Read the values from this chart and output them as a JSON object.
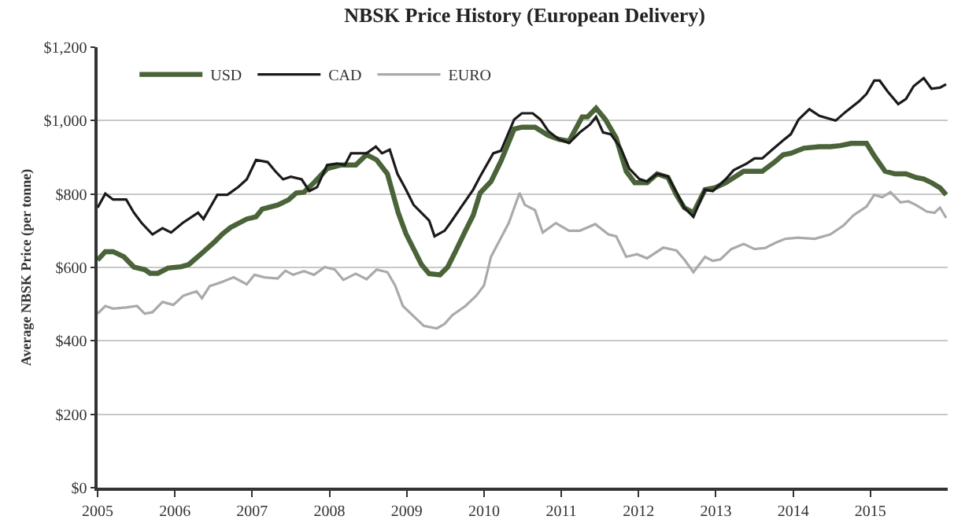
{
  "chart_data": {
    "type": "line",
    "title": "NBSK Price History (European Delivery)",
    "ylabel": "Average NBSK Price (per tonne)",
    "xlim": [
      2005,
      2016
    ],
    "xticks": [
      2005,
      2006,
      2007,
      2008,
      2009,
      2010,
      2011,
      2012,
      2013,
      2014,
      2015
    ],
    "ylim": [
      0,
      1200
    ],
    "yticks": [
      {
        "value": 0,
        "label": "$0"
      },
      {
        "value": 200,
        "label": "$200"
      },
      {
        "value": 400,
        "label": "$400"
      },
      {
        "value": 600,
        "label": "$600"
      },
      {
        "value": 800,
        "label": "$800"
      },
      {
        "value": 1000,
        "label": "$1,000"
      },
      {
        "value": 1200,
        "label": "$1,200"
      }
    ],
    "grid": "y",
    "legend": "top left",
    "marker": "none",
    "line_style": "solid",
    "series": [
      {
        "name": "USD",
        "color": "#4a6339",
        "x": [
          2005.0,
          2005.1,
          2005.2,
          2005.34,
          2005.47,
          2005.61,
          2005.68,
          2005.78,
          2005.91,
          2006.08,
          2006.18,
          2006.35,
          2006.52,
          2006.62,
          2006.72,
          2006.93,
          2007.05,
          2007.13,
          2007.33,
          2007.47,
          2007.57,
          2007.67,
          2007.8,
          2007.97,
          2008.14,
          2008.34,
          2008.48,
          2008.61,
          2008.75,
          2008.89,
          2008.99,
          2009.09,
          2009.19,
          2009.29,
          2009.43,
          2009.53,
          2009.63,
          2009.76,
          2009.86,
          2009.95,
          2010.09,
          2010.22,
          2010.39,
          2010.49,
          2010.66,
          2010.83,
          2010.97,
          2011.1,
          2011.27,
          2011.34,
          2011.45,
          2011.57,
          2011.71,
          2011.84,
          2011.95,
          2012.11,
          2012.24,
          2012.38,
          2012.49,
          2012.59,
          2012.71,
          2012.86,
          2012.99,
          2013.13,
          2013.36,
          2013.6,
          2013.76,
          2013.87,
          2013.97,
          2014.14,
          2014.34,
          2014.48,
          2014.61,
          2014.75,
          2014.95,
          2015.05,
          2015.19,
          2015.32,
          2015.46,
          2015.59,
          2015.69,
          2015.79,
          2015.9,
          2015.98
        ],
        "values": [
          620,
          643,
          643,
          629,
          601,
          594,
          584,
          584,
          598,
          602,
          608,
          639,
          671,
          692,
          709,
          732,
          738,
          759,
          770,
          784,
          803,
          805,
          831,
          869,
          879,
          879,
          907,
          893,
          855,
          749,
          692,
          650,
          608,
          583,
          580,
          601,
          643,
          700,
          742,
          803,
          834,
          890,
          977,
          982,
          982,
          960,
          949,
          944,
          1010,
          1010,
          1034,
          1003,
          953,
          862,
          831,
          831,
          855,
          845,
          798,
          763,
          749,
          812,
          817,
          831,
          862,
          862,
          887,
          907,
          911,
          925,
          929,
          929,
          932,
          938,
          938,
          904,
          862,
          855,
          855,
          845,
          841,
          831,
          817,
          798
        ]
      },
      {
        "name": "CAD",
        "color": "#1a1a1a",
        "x": [
          2005.0,
          2005.1,
          2005.2,
          2005.37,
          2005.47,
          2005.57,
          2005.71,
          2005.84,
          2005.95,
          2006.1,
          2006.3,
          2006.37,
          2006.55,
          2006.68,
          2006.82,
          2006.93,
          2007.05,
          2007.2,
          2007.3,
          2007.4,
          2007.5,
          2007.64,
          2007.74,
          2007.84,
          2007.97,
          2008.1,
          2008.2,
          2008.28,
          2008.48,
          2008.6,
          2008.68,
          2008.78,
          2008.88,
          2008.99,
          2009.09,
          2009.29,
          2009.36,
          2009.49,
          2009.56,
          2009.7,
          2009.86,
          2009.95,
          2010.12,
          2010.22,
          2010.39,
          2010.49,
          2010.63,
          2010.73,
          2010.83,
          2010.97,
          2011.1,
          2011.24,
          2011.37,
          2011.45,
          2011.54,
          2011.64,
          2011.77,
          2011.88,
          2012.01,
          2012.11,
          2012.24,
          2012.38,
          2012.49,
          2012.59,
          2012.71,
          2012.86,
          2012.96,
          2013.13,
          2013.23,
          2013.4,
          2013.5,
          2013.6,
          2013.73,
          2013.87,
          2013.97,
          2014.07,
          2014.21,
          2014.34,
          2014.55,
          2014.68,
          2014.85,
          2014.95,
          2015.05,
          2015.12,
          2015.22,
          2015.36,
          2015.46,
          2015.56,
          2015.69,
          2015.79,
          2015.9,
          2015.98
        ],
        "values": [
          763,
          801,
          785,
          785,
          749,
          721,
          690,
          707,
          695,
          721,
          749,
          732,
          798,
          798,
          819,
          840,
          893,
          887,
          862,
          840,
          847,
          840,
          808,
          819,
          879,
          883,
          879,
          911,
          911,
          929,
          911,
          921,
          855,
          812,
          770,
          728,
          685,
          700,
          720,
          763,
          812,
          848,
          911,
          918,
          1003,
          1020,
          1020,
          1003,
          972,
          949,
          939,
          968,
          989,
          1010,
          968,
          963,
          925,
          869,
          841,
          834,
          855,
          848,
          805,
          763,
          738,
          812,
          808,
          841,
          865,
          883,
          897,
          897,
          921,
          946,
          963,
          1003,
          1031,
          1013,
          1000,
          1024,
          1052,
          1073,
          1109,
          1109,
          1080,
          1045,
          1059,
          1094,
          1116,
          1087,
          1090,
          1099
        ]
      },
      {
        "name": "EURO",
        "color": "#aaaaaa",
        "x": [
          2005.0,
          2005.1,
          2005.2,
          2005.37,
          2005.51,
          2005.61,
          2005.71,
          2005.84,
          2005.98,
          2006.11,
          2006.28,
          2006.35,
          2006.45,
          2006.59,
          2006.76,
          2006.93,
          2007.03,
          2007.16,
          2007.33,
          2007.43,
          2007.53,
          2007.67,
          2007.8,
          2007.94,
          2008.07,
          2008.18,
          2008.34,
          2008.48,
          2008.61,
          2008.75,
          2008.85,
          2008.95,
          2009.09,
          2009.22,
          2009.39,
          2009.49,
          2009.59,
          2009.76,
          2009.9,
          2010.0,
          2010.09,
          2010.22,
          2010.32,
          2010.46,
          2010.53,
          2010.66,
          2010.76,
          2010.93,
          2011.1,
          2011.24,
          2011.44,
          2011.61,
          2011.71,
          2011.84,
          2011.98,
          2012.11,
          2012.32,
          2012.49,
          2012.59,
          2012.71,
          2012.86,
          2012.96,
          2013.06,
          2013.2,
          2013.36,
          2013.5,
          2013.64,
          2013.77,
          2013.9,
          2014.07,
          2014.28,
          2014.48,
          2014.65,
          2014.78,
          2014.95,
          2015.05,
          2015.15,
          2015.26,
          2015.39,
          2015.49,
          2015.59,
          2015.73,
          2015.83,
          2015.9,
          2015.98
        ],
        "values": [
          474,
          495,
          488,
          491,
          495,
          474,
          478,
          506,
          498,
          523,
          535,
          516,
          549,
          559,
          573,
          554,
          580,
          573,
          570,
          591,
          580,
          590,
          580,
          601,
          594,
          566,
          583,
          568,
          594,
          587,
          551,
          495,
          467,
          441,
          434,
          446,
          470,
          495,
          523,
          551,
          629,
          681,
          721,
          803,
          770,
          756,
          695,
          721,
          700,
          700,
          718,
          690,
          685,
          629,
          636,
          625,
          654,
          646,
          622,
          587,
          629,
          618,
          622,
          650,
          664,
          650,
          653,
          667,
          678,
          681,
          678,
          690,
          714,
          742,
          766,
          798,
          791,
          805,
          777,
          780,
          770,
          752,
          749,
          763,
          735
        ]
      }
    ]
  }
}
